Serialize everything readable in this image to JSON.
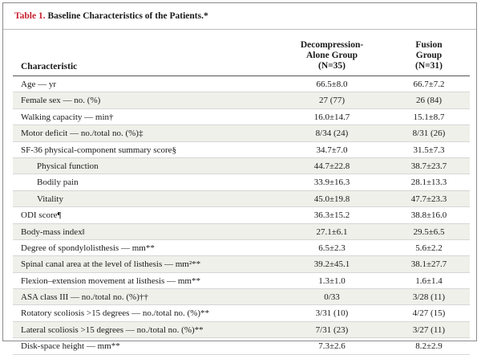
{
  "title": {
    "number": "Table 1.",
    "text": " Baseline Characteristics of the Patients.*"
  },
  "header": {
    "characteristic": "Characteristic",
    "col1_line1": "Decompression-",
    "col1_line2": "Alone Group",
    "col1_line3": "(N=35)",
    "col2_line1": "Fusion",
    "col2_line2": "Group",
    "col2_line3": "(N=31)"
  },
  "rows": [
    {
      "label": "Age — yr",
      "c1": "66.5±8.0",
      "c2": "66.7±7.2"
    },
    {
      "label": "Female sex — no. (%)",
      "c1": "27 (77)",
      "c2": "26 (84)"
    },
    {
      "label": "Walking capacity — min†",
      "c1": "16.0±14.7",
      "c2": "15.1±8.7"
    },
    {
      "label": "Motor deficit — no./total no. (%)‡",
      "c1": "8/34 (24)",
      "c2": "8/31 (26)"
    },
    {
      "label": "SF-36 physical-component summary score§",
      "c1": "34.7±7.0",
      "c2": "31.5±7.3"
    },
    {
      "label": "Physical function",
      "c1": "44.7±22.8",
      "c2": "38.7±23.7",
      "indent": true
    },
    {
      "label": "Bodily pain",
      "c1": "33.9±16.3",
      "c2": "28.1±13.3",
      "indent": true
    },
    {
      "label": "Vitality",
      "c1": "45.0±19.8",
      "c2": "47.7±23.3",
      "indent": true
    },
    {
      "label": "ODI score¶",
      "c1": "36.3±15.2",
      "c2": "38.8±16.0"
    },
    {
      "label": "Body-mass index‖",
      "c1": "27.1±6.1",
      "c2": "29.5±6.5"
    },
    {
      "label": "Degree of spondylolisthesis — mm**",
      "c1": "6.5±2.3",
      "c2": "5.6±2.2"
    },
    {
      "label": "Spinal canal area at the level of listhesis — mm²**",
      "c1": "39.2±45.1",
      "c2": "38.1±27.7"
    },
    {
      "label": "Flexion–extension movement at listhesis — mm**",
      "c1": "1.3±1.0",
      "c2": "1.6±1.4"
    },
    {
      "label": "ASA class III — no./total no. (%)††",
      "c1": "0/33",
      "c2": "3/28 (11)"
    },
    {
      "label": "Rotatory scoliosis >15 degrees — no./total no. (%)**",
      "c1": "3/31 (10)",
      "c2": "4/27 (15)"
    },
    {
      "label": "Lateral scoliosis >15 degrees — no./total no. (%)**",
      "c1": "7/31 (23)",
      "c2": "3/27 (11)"
    },
    {
      "label": "Disk-space height — mm**",
      "c1": "7.3±2.6",
      "c2": "8.2±2.9"
    }
  ]
}
